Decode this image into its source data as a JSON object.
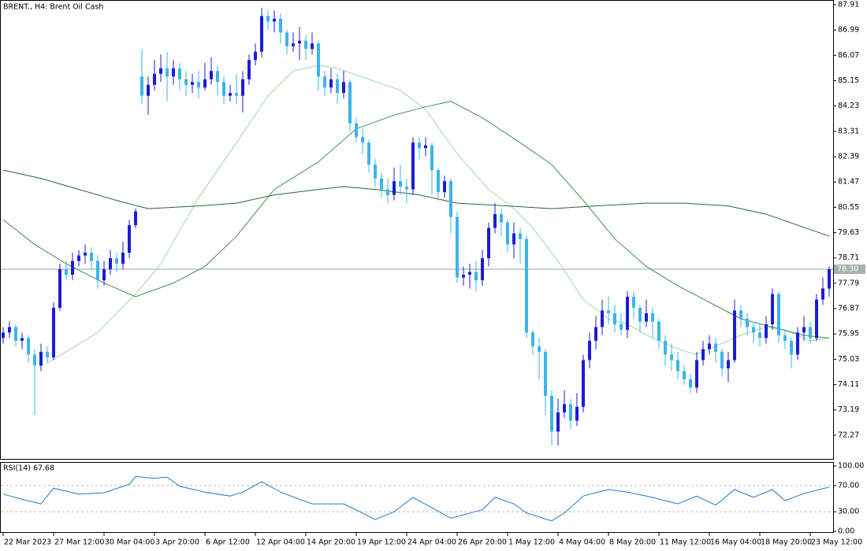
{
  "chart_data": {
    "type": "candlestick",
    "title": "BRENT., H4:  Brent Oil Cash",
    "categories": [
      "22 Mar 2023",
      null,
      null,
      null,
      null,
      null,
      null,
      null,
      "27 Mar 12:00",
      null,
      null,
      null,
      null,
      null,
      null,
      null,
      "30 Mar 04:00",
      null,
      null,
      null,
      null,
      null,
      null,
      null,
      "3 Apr 20:00",
      null,
      null,
      null,
      null,
      null,
      null,
      null,
      "6 Apr 12:00",
      null,
      null,
      null,
      null,
      null,
      null,
      null,
      "12 Apr 04:00",
      null,
      null,
      null,
      null,
      null,
      null,
      null,
      "14 Apr 20:00",
      null,
      null,
      null,
      null,
      null,
      null,
      null,
      "19 Apr 12:00",
      null,
      null,
      null,
      null,
      null,
      null,
      null,
      "24 Apr 04:00",
      null,
      null,
      null,
      null,
      null,
      null,
      null,
      "26 Apr 20:00",
      null,
      null,
      null,
      null,
      null,
      null,
      null,
      "1 May 12:00",
      null,
      null,
      null,
      null,
      null,
      null,
      null,
      "4 May 04:00",
      null,
      null,
      null,
      null,
      null,
      null,
      null,
      "8 May 20:00",
      null,
      null,
      null,
      null,
      null,
      null,
      null,
      "11 May 12:00",
      null,
      null,
      null,
      null,
      null,
      null,
      null,
      "16 May 04:00",
      null,
      null,
      null,
      null,
      null,
      null,
      null,
      "18 May 20:00",
      null,
      null,
      null,
      null,
      null,
      null,
      null,
      "23 May 12:00",
      null,
      null,
      null
    ],
    "candles": [
      [
        75.8,
        76.2,
        75.6,
        76.0
      ],
      [
        76.0,
        76.4,
        75.8,
        76.2
      ],
      [
        76.2,
        76.3,
        75.5,
        75.7
      ],
      [
        75.7,
        76.0,
        75.4,
        75.8
      ],
      [
        75.8,
        75.9,
        74.9,
        75.2
      ],
      [
        75.2,
        75.4,
        73.0,
        74.8
      ],
      [
        74.8,
        75.6,
        74.6,
        75.3
      ],
      [
        75.3,
        75.5,
        74.9,
        75.1
      ],
      [
        75.1,
        77.1,
        75.0,
        76.9
      ],
      [
        76.9,
        78.5,
        76.8,
        78.3
      ],
      [
        78.3,
        78.6,
        77.9,
        78.1
      ],
      [
        78.1,
        78.9,
        77.9,
        78.6
      ],
      [
        78.6,
        79.0,
        78.4,
        78.8
      ],
      [
        78.8,
        79.2,
        78.5,
        78.9
      ],
      [
        78.9,
        79.1,
        78.3,
        78.6
      ],
      [
        78.6,
        78.8,
        77.6,
        77.9
      ],
      [
        77.9,
        78.6,
        77.7,
        78.3
      ],
      [
        78.3,
        79.0,
        78.1,
        78.7
      ],
      [
        78.7,
        78.9,
        78.2,
        78.5
      ],
      [
        78.5,
        79.3,
        78.3,
        78.9
      ],
      [
        78.9,
        80.1,
        78.7,
        79.9
      ],
      [
        79.9,
        80.5,
        79.8,
        80.4
      ],
      [
        85.3,
        86.3,
        84.3,
        84.6
      ],
      [
        84.6,
        85.3,
        83.9,
        85.0
      ],
      [
        85.0,
        85.9,
        84.8,
        85.4
      ],
      [
        85.4,
        86.1,
        85.1,
        85.6
      ],
      [
        85.6,
        86.2,
        84.4,
        85.3
      ],
      [
        85.3,
        85.9,
        85.0,
        85.6
      ],
      [
        85.6,
        85.8,
        84.8,
        85.2
      ],
      [
        85.2,
        85.5,
        84.6,
        85.0
      ],
      [
        85.0,
        85.4,
        84.7,
        85.1
      ],
      [
        85.1,
        85.5,
        84.5,
        84.9
      ],
      [
        84.9,
        85.8,
        84.8,
        85.2
      ],
      [
        85.2,
        86.0,
        85.0,
        85.5
      ],
      [
        85.5,
        85.7,
        84.6,
        85.1
      ],
      [
        85.1,
        85.3,
        84.3,
        84.6
      ],
      [
        84.6,
        85.0,
        84.4,
        84.7
      ],
      [
        84.7,
        85.4,
        84.3,
        84.6
      ],
      [
        84.6,
        85.5,
        84.0,
        85.2
      ],
      [
        85.2,
        86.1,
        85.0,
        85.9
      ],
      [
        85.9,
        86.5,
        85.7,
        86.2
      ],
      [
        86.2,
        87.8,
        86.0,
        87.5
      ],
      [
        87.5,
        87.7,
        87.0,
        87.3
      ],
      [
        87.3,
        87.7,
        86.9,
        87.4
      ],
      [
        87.4,
        87.6,
        86.5,
        86.9
      ],
      [
        86.9,
        87.0,
        86.1,
        86.4
      ],
      [
        86.4,
        86.9,
        86.2,
        86.5
      ],
      [
        86.5,
        87.1,
        85.9,
        86.6
      ],
      [
        86.6,
        86.8,
        85.9,
        86.3
      ],
      [
        86.3,
        86.9,
        86.1,
        86.5
      ],
      [
        86.5,
        86.6,
        84.8,
        85.3
      ],
      [
        85.3,
        85.5,
        84.6,
        84.9
      ],
      [
        84.9,
        85.6,
        84.7,
        85.2
      ],
      [
        85.2,
        85.4,
        84.3,
        84.7
      ],
      [
        84.7,
        85.5,
        84.5,
        85.1
      ],
      [
        85.1,
        85.2,
        83.3,
        83.6
      ],
      [
        83.6,
        83.8,
        82.9,
        83.1
      ],
      [
        83.1,
        83.4,
        82.5,
        82.9
      ],
      [
        82.9,
        83.0,
        81.8,
        82.1
      ],
      [
        82.1,
        82.3,
        81.3,
        81.6
      ],
      [
        81.6,
        81.8,
        80.9,
        81.2
      ],
      [
        81.2,
        81.6,
        80.7,
        81.0
      ],
      [
        81.0,
        82.0,
        80.8,
        81.5
      ],
      [
        81.5,
        82.1,
        81.0,
        81.3
      ],
      [
        81.3,
        81.6,
        80.7,
        81.2
      ],
      [
        81.2,
        83.1,
        81.0,
        82.9
      ],
      [
        82.9,
        83.1,
        82.3,
        82.7
      ],
      [
        82.7,
        83.1,
        82.4,
        82.8
      ],
      [
        82.8,
        82.9,
        81.0,
        81.9
      ],
      [
        81.9,
        82.0,
        80.8,
        81.1
      ],
      [
        81.1,
        81.7,
        80.9,
        81.5
      ],
      [
        81.5,
        81.6,
        79.6,
        80.2
      ],
      [
        80.2,
        80.4,
        77.8,
        78.0
      ],
      [
        78.0,
        78.4,
        77.7,
        78.1
      ],
      [
        78.1,
        78.5,
        77.6,
        78.2
      ],
      [
        78.2,
        78.6,
        77.5,
        77.9
      ],
      [
        77.9,
        79.0,
        77.7,
        78.7
      ],
      [
        78.7,
        80.0,
        78.4,
        79.8
      ],
      [
        79.8,
        80.7,
        79.6,
        80.3
      ],
      [
        80.3,
        80.5,
        79.5,
        80.0
      ],
      [
        80.0,
        80.1,
        78.9,
        79.2
      ],
      [
        79.2,
        80.0,
        78.7,
        79.6
      ],
      [
        79.6,
        79.8,
        78.5,
        79.4
      ],
      [
        79.4,
        79.5,
        75.8,
        76.0
      ],
      [
        76.0,
        76.1,
        75.2,
        75.5
      ],
      [
        75.5,
        75.8,
        74.3,
        75.3
      ],
      [
        75.3,
        75.4,
        73.0,
        73.7
      ],
      [
        73.7,
        73.9,
        71.9,
        72.4
      ],
      [
        72.4,
        73.6,
        71.9,
        73.1
      ],
      [
        73.1,
        73.9,
        72.9,
        73.4
      ],
      [
        73.4,
        73.6,
        72.5,
        72.8
      ],
      [
        72.8,
        73.8,
        72.6,
        73.3
      ],
      [
        73.3,
        75.2,
        73.1,
        75.0
      ],
      [
        75.0,
        76.0,
        74.7,
        75.7
      ],
      [
        75.7,
        76.6,
        75.4,
        76.2
      ],
      [
        76.2,
        77.2,
        75.9,
        76.8
      ],
      [
        76.8,
        77.3,
        76.3,
        76.7
      ],
      [
        76.7,
        77.0,
        76.0,
        76.3
      ],
      [
        76.3,
        76.7,
        75.9,
        76.1
      ],
      [
        76.1,
        77.5,
        75.8,
        77.3
      ],
      [
        77.3,
        77.5,
        76.5,
        76.9
      ],
      [
        76.9,
        77.0,
        76.0,
        76.4
      ],
      [
        76.4,
        77.2,
        76.2,
        76.7
      ],
      [
        76.7,
        76.9,
        75.8,
        76.4
      ],
      [
        76.4,
        76.5,
        75.4,
        75.7
      ],
      [
        75.7,
        75.9,
        74.8,
        75.2
      ],
      [
        75.2,
        75.6,
        74.6,
        75.0
      ],
      [
        75.0,
        75.3,
        74.3,
        74.6
      ],
      [
        74.6,
        74.8,
        74.1,
        74.3
      ],
      [
        74.3,
        74.5,
        73.8,
        74.0
      ],
      [
        74.0,
        75.3,
        73.8,
        75.0
      ],
      [
        75.0,
        75.7,
        74.8,
        75.4
      ],
      [
        75.4,
        75.9,
        75.2,
        75.6
      ],
      [
        75.6,
        75.8,
        74.9,
        75.3
      ],
      [
        75.3,
        75.4,
        74.4,
        74.7
      ],
      [
        74.7,
        75.3,
        74.2,
        75.0
      ],
      [
        75.0,
        77.2,
        74.9,
        76.8
      ],
      [
        76.8,
        77.0,
        76.2,
        76.5
      ],
      [
        76.5,
        76.7,
        75.9,
        76.2
      ],
      [
        76.2,
        76.4,
        75.6,
        76.0
      ],
      [
        76.0,
        76.3,
        75.5,
        75.8
      ],
      [
        75.8,
        76.6,
        75.6,
        76.3
      ],
      [
        76.3,
        77.6,
        76.1,
        77.4
      ],
      [
        77.4,
        77.5,
        75.6,
        75.9
      ],
      [
        75.9,
        76.1,
        75.4,
        75.7
      ],
      [
        75.7,
        75.8,
        74.7,
        75.2
      ],
      [
        75.2,
        76.2,
        75.0,
        76.0
      ],
      [
        76.0,
        76.6,
        75.7,
        76.2
      ],
      [
        76.2,
        76.4,
        75.6,
        75.8
      ],
      [
        75.8,
        77.4,
        75.7,
        77.2
      ],
      [
        77.2,
        78.0,
        77.0,
        77.6
      ],
      [
        77.6,
        78.4,
        77.3,
        78.3
      ]
    ],
    "up_color": "#1c1cd6",
    "down_color": "#3bb4ec",
    "ylim": [
      71.41,
      88.08
    ],
    "yticks": [
      87.91,
      86.99,
      86.07,
      85.15,
      84.23,
      83.31,
      82.39,
      81.47,
      80.55,
      79.63,
      78.71,
      77.79,
      76.87,
      75.95,
      75.03,
      74.11,
      73.19,
      72.27
    ],
    "price_line": {
      "value": 78.3,
      "label": "78.30"
    },
    "lines": [
      {
        "color": "#9fd9a9",
        "x": [
          7,
          10,
          15,
          21,
          25,
          31,
          37,
          42,
          46,
          50,
          53,
          58,
          63,
          67,
          72,
          77,
          81,
          84,
          88,
          92,
          96,
          99,
          103,
          107,
          110,
          113,
          117,
          121,
          124,
          128,
          131
        ],
        "values": [
          74.9,
          75.3,
          76.0,
          77.4,
          78.5,
          80.9,
          82.9,
          84.6,
          85.5,
          85.7,
          85.6,
          85.2,
          84.8,
          84.1,
          82.5,
          81.2,
          80.5,
          79.8,
          78.6,
          77.2,
          76.5,
          76.3,
          75.8,
          75.4,
          75.2,
          75.5,
          75.9,
          76.2,
          76.1,
          75.7,
          75.8
        ]
      },
      {
        "color": "#3f8f55",
        "x": [
          0,
          5,
          10,
          16,
          21,
          27,
          32,
          37,
          43,
          50,
          56,
          62,
          67,
          71,
          76,
          82,
          87,
          92,
          97,
          102,
          107,
          112,
          117,
          122,
          127,
          131
        ],
        "values": [
          80.1,
          79.2,
          78.5,
          77.8,
          77.3,
          77.8,
          78.4,
          79.5,
          81.2,
          82.2,
          83.4,
          83.9,
          84.2,
          84.4,
          83.8,
          82.9,
          82.1,
          80.8,
          79.4,
          78.4,
          77.7,
          77.1,
          76.5,
          76.2,
          75.9,
          75.8
        ]
      },
      {
        "color": "#2c6439",
        "x": [
          0,
          6,
          12,
          18,
          23,
          31,
          37,
          43,
          50,
          54,
          59,
          66,
          72,
          80,
          87,
          94,
          102,
          108,
          115,
          121,
          126,
          131
        ],
        "values": [
          81.9,
          81.6,
          81.2,
          80.8,
          80.5,
          80.6,
          80.7,
          81.0,
          81.2,
          81.3,
          81.2,
          81.0,
          80.7,
          80.6,
          80.5,
          80.6,
          80.7,
          80.7,
          80.6,
          80.3,
          79.9,
          79.5
        ]
      }
    ],
    "rsi": {
      "title": "RSI(14) 67.68",
      "color": "#1e78d8",
      "x": [
        0,
        3,
        6,
        8,
        12,
        16,
        20,
        21,
        24,
        26,
        28,
        32,
        36,
        38,
        41,
        44,
        49,
        54,
        57,
        59,
        62,
        65,
        68,
        71,
        76,
        78,
        81,
        83,
        87,
        89,
        92,
        96,
        99,
        103,
        107,
        110,
        113,
        116,
        119,
        122,
        124,
        127,
        131
      ],
      "values": [
        57,
        49,
        42,
        66,
        57,
        59,
        72,
        84,
        81,
        83,
        69,
        60,
        54,
        60,
        76,
        60,
        42,
        42,
        28,
        18,
        30,
        52,
        36,
        20,
        33,
        52,
        42,
        28,
        16,
        28,
        54,
        64,
        60,
        52,
        42,
        54,
        40,
        64,
        52,
        64,
        47,
        58,
        67.68
      ],
      "ylim": [
        0,
        100
      ],
      "yticks": [
        {
          "value": 100,
          "label": "100.00"
        },
        {
          "value": 70,
          "label": "70.00"
        },
        {
          "value": 30,
          "label": "30.00"
        },
        {
          "value": 0,
          "label": "0.00"
        }
      ],
      "levels": [
        70,
        30
      ]
    }
  }
}
